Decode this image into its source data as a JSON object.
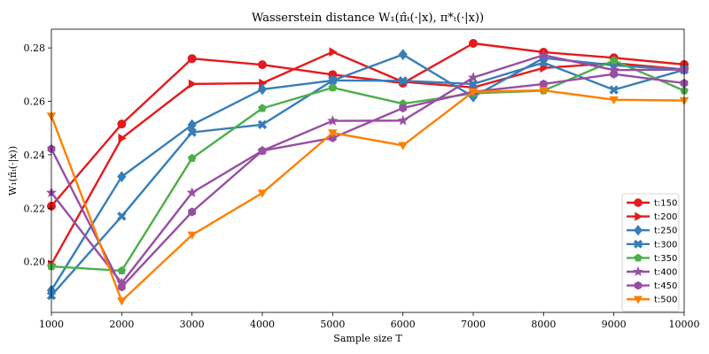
{
  "chart_data": {
    "type": "line",
    "title": "Wasserstein distance W₁(π̂ₜ(·|x), π*ₜ(·|x))",
    "xlabel": "Sample size T",
    "ylabel": "W₁(π̂ₜ(·|x))",
    "xlim": [
      1000,
      10000
    ],
    "ylim": [
      0.181,
      0.287
    ],
    "x": [
      1000,
      2000,
      3000,
      4000,
      5000,
      6000,
      7000,
      8000,
      9000,
      10000
    ],
    "xticks": [
      1000,
      2000,
      3000,
      4000,
      5000,
      6000,
      7000,
      8000,
      9000,
      10000
    ],
    "yticks": [
      0.2,
      0.22,
      0.24,
      0.26,
      0.28
    ],
    "ytick_labels": [
      "0.20",
      "0.22",
      "0.24",
      "0.26",
      "0.28"
    ],
    "grid": false,
    "legend_position": "lower-right",
    "series": [
      {
        "name": "t:150",
        "color": "#e41a1c",
        "marker": "circle",
        "values": [
          0.2208,
          0.2515,
          0.276,
          0.2737,
          0.27,
          0.2668,
          0.2817,
          0.2784,
          0.2763,
          0.2738
        ]
      },
      {
        "name": "t:200",
        "color": "#e41a1c",
        "marker": "triangle-right",
        "values": [
          0.199,
          0.2462,
          0.2665,
          0.2668,
          0.2785,
          0.2673,
          0.2652,
          0.2725,
          0.2743,
          0.2719
        ]
      },
      {
        "name": "t:250",
        "color": "#377eb8",
        "marker": "diamond",
        "values": [
          0.1893,
          0.2318,
          0.2512,
          0.2645,
          0.2678,
          0.2775,
          0.2617,
          0.2762,
          0.2735,
          0.2718
        ]
      },
      {
        "name": "t:300",
        "color": "#377eb8",
        "marker": "x-filled",
        "values": [
          0.1873,
          0.217,
          0.2484,
          0.2513,
          0.2678,
          0.2677,
          0.2665,
          0.2745,
          0.2643,
          0.2718
        ]
      },
      {
        "name": "t:350",
        "color": "#4daf4a",
        "marker": "pentagon",
        "values": [
          0.1982,
          0.1966,
          0.2387,
          0.2574,
          0.2651,
          0.2591,
          0.263,
          0.264,
          0.2753,
          0.264
        ]
      },
      {
        "name": "t:400",
        "color": "#984ea3",
        "marker": "star",
        "values": [
          0.2258,
          0.192,
          0.2258,
          0.2415,
          0.2527,
          0.2528,
          0.2689,
          0.2773,
          0.2717,
          0.2719
        ]
      },
      {
        "name": "t:450",
        "color": "#984ea3",
        "marker": "hexagon",
        "values": [
          0.2422,
          0.1905,
          0.2186,
          0.2415,
          0.2463,
          0.2575,
          0.2636,
          0.2665,
          0.2702,
          0.2668
        ]
      },
      {
        "name": "t:500",
        "color": "#ff7f00",
        "marker": "triangle-down",
        "values": [
          0.2545,
          0.1853,
          0.21,
          0.2257,
          0.2482,
          0.2435,
          0.2636,
          0.2641,
          0.2606,
          0.2603
        ]
      }
    ]
  }
}
